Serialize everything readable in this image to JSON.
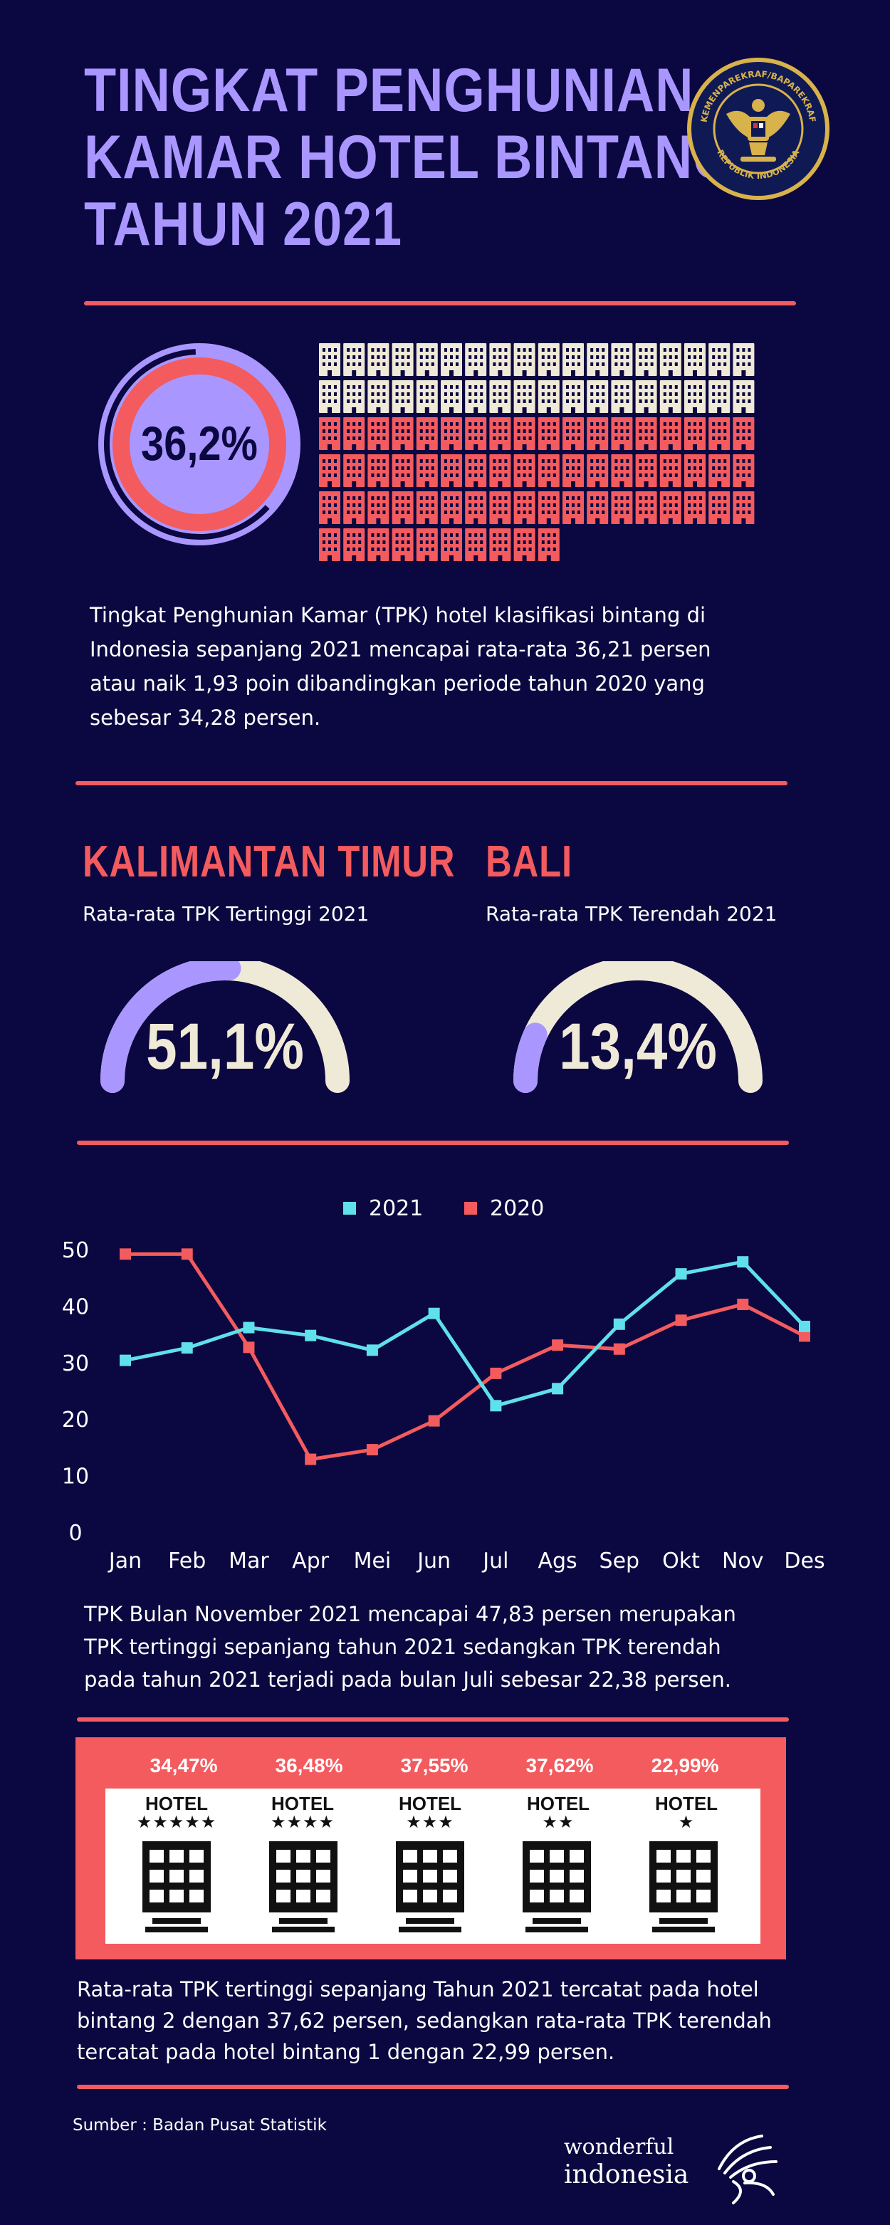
{
  "title_lines": [
    "TINGKAT PENGHUNIAN",
    "KAMAR HOTEL BINTANG",
    "TAHUN 2021"
  ],
  "emblem": {
    "top_text": "KEMENPAREKRAF/BAPAREKRAF",
    "bottom_text": "REPUBLIK INDONESIA"
  },
  "summary": {
    "donut_label": "36,2%",
    "donut_value": 36.2,
    "paragraph_lines": [
      "Tingkat Penghunian Kamar (TPK) hotel klasifikasi bintang di",
      "Indonesia sepanjang 2021 mencapai rata-rata 36,21 persen",
      "atau naik 1,93 poin dibandingkan periode tahun 2020 yang",
      "sebesar 34,28 persen."
    ]
  },
  "regions": [
    {
      "name": "KALIMANTAN TIMUR",
      "subtitle": "Rata-rata TPK Tertinggi 2021",
      "label": "51,1%",
      "value": 51.1
    },
    {
      "name": "BALI",
      "subtitle": "Rata-rata TPK Terendah 2021",
      "label": "13,4%",
      "value": 13.4
    }
  ],
  "colors": {
    "background": "#0b0740",
    "accent_red": "#f35b5e",
    "accent_purple": "#a997ff",
    "cream": "#efe9d7",
    "cyan": "#5fe0ea"
  },
  "chart_data": {
    "type": "line",
    "categories": [
      "Jan",
      "Feb",
      "Mar",
      "Apr",
      "Mei",
      "Jun",
      "Jul",
      "Ags",
      "Sep",
      "Okt",
      "Nov",
      "Des"
    ],
    "series": [
      {
        "name": "2021",
        "color": "#5fe0ea",
        "values": [
          30.4,
          32.6,
          36.2,
          34.8,
          32.2,
          38.7,
          22.38,
          25.4,
          36.8,
          45.7,
          47.83,
          36.4
        ]
      },
      {
        "name": "2020",
        "color": "#f35b5e",
        "values": [
          49.2,
          49.2,
          32.7,
          12.9,
          14.6,
          19.7,
          28.1,
          33.1,
          32.4,
          37.5,
          40.3,
          34.7
        ]
      }
    ],
    "ylim": [
      0,
      50
    ],
    "yticks": [
      0,
      10,
      20,
      30,
      40,
      50
    ],
    "legend_position": "top-center",
    "grid": false
  },
  "chart_note_lines": [
    "TPK Bulan November 2021 mencapai 47,83 persen merupakan",
    "TPK tertinggi sepanjang tahun 2021 sedangkan TPK terendah",
    "pada tahun 2021 terjadi pada bulan Juli sebesar 22,38 persen."
  ],
  "hotels": [
    {
      "pct": "34,47%",
      "label": "HOTEL",
      "stars": "★★★★★"
    },
    {
      "pct": "36,48%",
      "label": "HOTEL",
      "stars": "★★★★"
    },
    {
      "pct": "37,55%",
      "label": "HOTEL",
      "stars": "★★★"
    },
    {
      "pct": "37,62%",
      "label": "HOTEL",
      "stars": "★★"
    },
    {
      "pct": "22,99%",
      "label": "HOTEL",
      "stars": "★"
    }
  ],
  "hotel_note_lines": [
    "Rata-rata TPK tertinggi sepanjang Tahun 2021 tercatat pada hotel",
    "bintang 2 dengan 37,62 persen, sedangkan rata-rata TPK terendah",
    "tercatat pada hotel bintang 1 dengan 22,99 persen."
  ],
  "source": "Sumber : Badan Pusat Statistik",
  "brand": {
    "line1": "wonderful",
    "line2": "indonesia"
  }
}
